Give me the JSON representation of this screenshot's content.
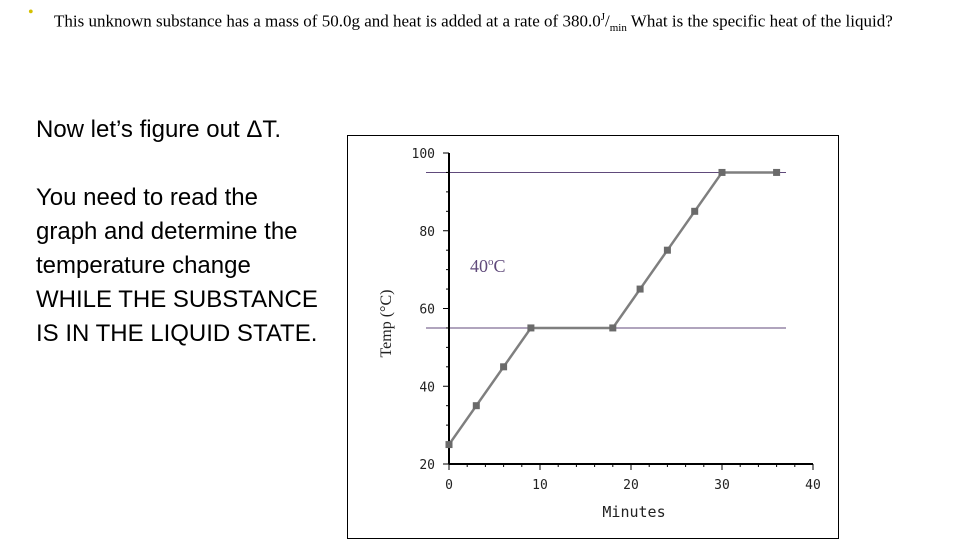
{
  "problem": {
    "bullet": "•",
    "text_before": "This unknown substance has a mass of 50.0g and heat is added at a rate of 380.0",
    "unit_num": "J",
    "unit_sep": "/",
    "unit_den": "min",
    "text_after": " What is the specific heat of the liquid?"
  },
  "left": {
    "paragraph1": "Now let’s figure out ΔT.",
    "paragraph2": "You need to read the graph and determine the temperature change WHILE THE SUBSTANCE IS IN THE LIQUID STATE."
  },
  "colors": {
    "bullet": "#d4c000",
    "line": "#7f7f7f",
    "marker": "#6a6a6a",
    "annotation": "#604a7b"
  },
  "chart_data": {
    "type": "line",
    "xlabel": "Minutes",
    "ylabel": "Temp (°C)",
    "xlim": [
      0,
      40
    ],
    "ylim": [
      20,
      100
    ],
    "xticks": [
      0,
      10,
      20,
      30,
      40
    ],
    "yticks": [
      20,
      40,
      60,
      80,
      100
    ],
    "series": [
      {
        "x": [
          0,
          3,
          6,
          9,
          18,
          21,
          24,
          27,
          30,
          36
        ],
        "y": [
          25,
          35,
          45,
          55,
          55,
          65,
          75,
          85,
          95,
          95
        ]
      }
    ],
    "reference_lines": [
      95,
      55
    ],
    "annotation": {
      "value": "40",
      "unit": "C",
      "degree": "o"
    }
  }
}
